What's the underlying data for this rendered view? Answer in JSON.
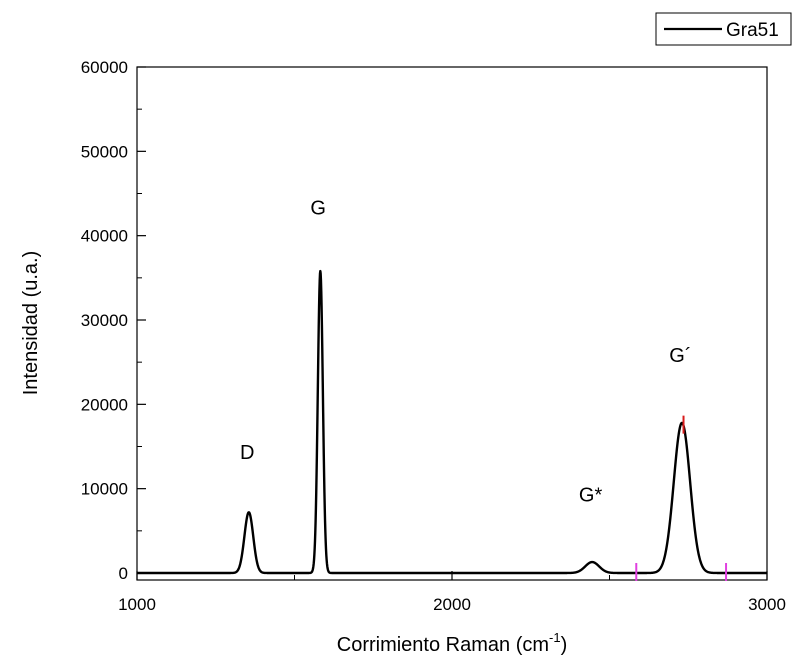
{
  "chart_data": {
    "type": "line",
    "xlabel": "Corrimiento Raman (cm",
    "xlabel_sup": "-1",
    "xlabel_suffix": ")",
    "ylabel": "Intensidad (u.a.)",
    "xlim": [
      1000,
      3000
    ],
    "ylim": [
      0,
      60000
    ],
    "x_ticks": [
      1000,
      2000,
      3000
    ],
    "x_tick_labels": [
      "1000",
      "2000",
      "3000"
    ],
    "y_ticks": [
      0,
      10000,
      20000,
      30000,
      40000,
      50000,
      60000
    ],
    "y_tick_labels": [
      "0",
      "10000",
      "20000",
      "30000",
      "40000",
      "50000",
      "60000"
    ],
    "legend": {
      "placement": "top-right",
      "entries": [
        "Gra51"
      ]
    },
    "series": [
      {
        "name": "Gra51",
        "color": "#000000",
        "peaks": [
          {
            "center": 1355,
            "height": 7200,
            "sigma": 14
          },
          {
            "center": 1582,
            "height": 35800,
            "sigma": 8
          },
          {
            "center": 2445,
            "height": 1300,
            "sigma": 22
          },
          {
            "center": 2730,
            "height": 17800,
            "sigma": 26
          }
        ]
      }
    ],
    "annotations": [
      {
        "text": "D",
        "x": 1350,
        "y": 13500
      },
      {
        "text": "G",
        "x": 1575,
        "y": 42500
      },
      {
        "text": "G*",
        "x": 2440,
        "y": 8500
      },
      {
        "text": "G´",
        "x": 2725,
        "y": 25000
      }
    ],
    "markers": [
      {
        "x": 2585,
        "color": "#e040e0"
      },
      {
        "x": 2735,
        "color": "#d81b1b"
      },
      {
        "x": 2870,
        "color": "#e040e0"
      }
    ]
  }
}
